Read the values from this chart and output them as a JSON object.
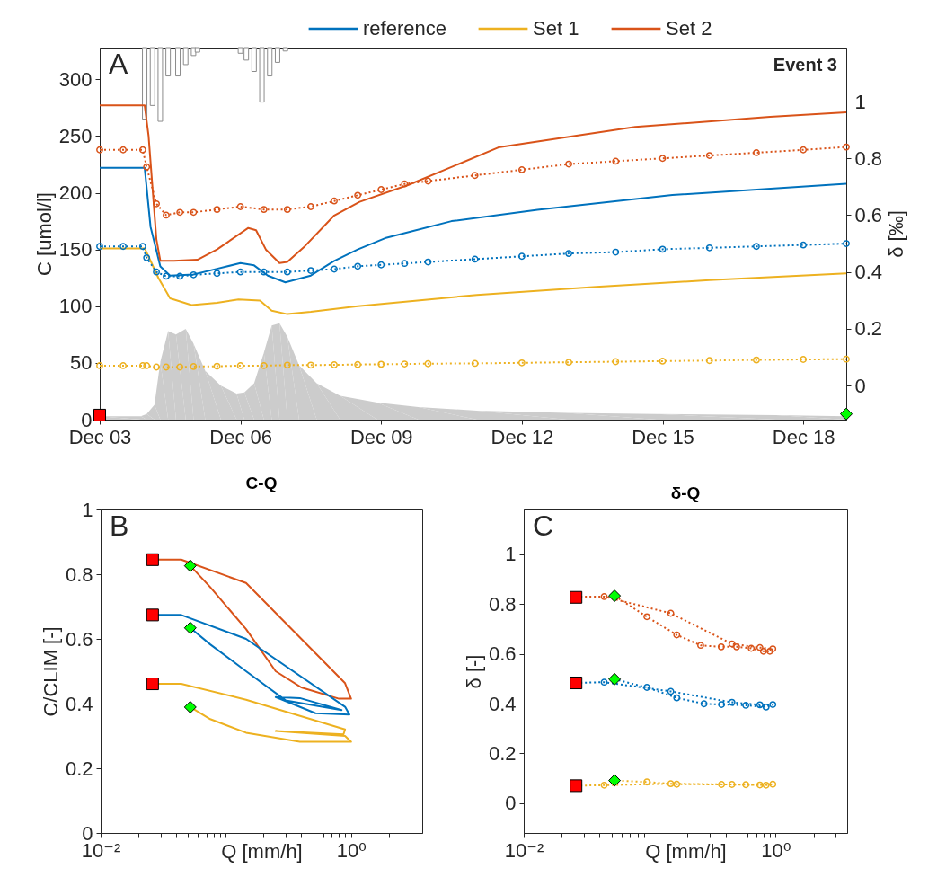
{
  "chart_data": [
    {
      "type": "line",
      "ylabel": "C [umol/l]",
      "y2label": "δ [‰]",
      "annotations": [
        "A",
        "Event 3"
      ],
      "legend": "top right",
      "xlim": [
        "--12-03",
        "--12-18T22:00"
      ],
      "xticks": [
        {
          "value": "--12-03",
          "label": "Dec 03"
        },
        {
          "value": "--12-06",
          "label": "Dec 06"
        },
        {
          "value": "--12-09",
          "label": "Dec 09"
        },
        {
          "value": "--12-12",
          "label": "Dec 12"
        },
        {
          "value": "--12-15",
          "label": "Dec 15"
        },
        {
          "value": "--12-18",
          "label": "Dec 18"
        }
      ],
      "ylim": [
        0,
        328
      ],
      "yticks": [
        0,
        50,
        100,
        150,
        200,
        250,
        300
      ],
      "y2lim": [
        -0.12,
        1.19
      ],
      "y2ticks": [
        0,
        0.2,
        0.4,
        0.6,
        0.8,
        1
      ],
      "series": [
        {
          "type": "area",
          "color": "#cccccc",
          "x": [
            "--12-03",
            "--12-03T21:00",
            "--12-04",
            "--12-04T04:00",
            "--12-04T07:00",
            "--12-04T11:00",
            "--12-04T15:00",
            "--12-04T20:00",
            "--12-05",
            "--12-05T06:00",
            "--12-05T14:00",
            "--12-05T22:00",
            "--12-06T02:00",
            "--12-06T07:00",
            "--12-06T12:00",
            "--12-06T16:00",
            "--12-06T20:00",
            "--12-07",
            "--12-07T06:00",
            "--12-07T15:00",
            "--12-08T03:00",
            "--12-08T22:00",
            "--12-09T19:00",
            "--12-11T01:00",
            "--12-12T23:00",
            "--12-14T21:00",
            "--12-17T10:00",
            "--12-18T22:00"
          ],
          "values": [
            3,
            3,
            5,
            13,
            51,
            78,
            75,
            80,
            67,
            43,
            30,
            23,
            24,
            32,
            59,
            83,
            85,
            73,
            48,
            32,
            21,
            15,
            11,
            8,
            6,
            5,
            4,
            3
          ]
        },
        {
          "type": "bar",
          "color": "#8c8c8c",
          "x": [
            "--12-03T23:00",
            "--12-04T03:00",
            "--12-04T07:00",
            "--12-04T11:00",
            "--12-04T16:00",
            "--12-04T20:00",
            "--12-05",
            "--12-05T02:00",
            "--12-06",
            "--12-06T03:00",
            "--12-06T07:00",
            "--12-06T11:00",
            "--12-06T15:00",
            "--12-06T19:00",
            "--12-06T23:00"
          ],
          "base": [
            328,
            328,
            328,
            328,
            328,
            328,
            328,
            328,
            328,
            328,
            328,
            328,
            328,
            328,
            328
          ],
          "values": [
            -63,
            -51,
            -65,
            -25,
            -25,
            -15,
            -7,
            -4,
            -5,
            -11,
            -21,
            -48,
            -25,
            -13,
            -3
          ]
        },
        {
          "name": "reference",
          "color": "#0072bd",
          "x": [
            "--12-03",
            "--12-03T23:00",
            "--12-04T02:00",
            "--12-04T07:00",
            "--12-04T12:00",
            "--12-05",
            "--12-05T12:00",
            "--12-06",
            "--12-06T07:00",
            "--12-06T14:00",
            "--12-06T23:00",
            "--12-07T12:00",
            "--12-08",
            "--12-08T12:00",
            "--12-09T02:00",
            "--12-10T12:00",
            "--12-12T08:00",
            "--12-15T05:00",
            "--12-18T22:00"
          ],
          "values": [
            222,
            222,
            170,
            135,
            127,
            128,
            133,
            138,
            136,
            127,
            121,
            127,
            140,
            150,
            160,
            175,
            185,
            198,
            208
          ]
        },
        {
          "name": "Set 1",
          "color": "#edb120",
          "x": [
            "--12-03",
            "--12-03T23:00",
            "--12-04T02:00",
            "--12-04T06:00",
            "--12-04T12:00",
            "--12-04T23:00",
            "--12-05T12:00",
            "--12-05T23:00",
            "--12-06T10:00",
            "--12-06T16:00",
            "--12-07",
            "--12-07T12:00",
            "--12-08T12:00",
            "--12-11T01:00",
            "--12-13T14:00",
            "--12-16",
            "--12-18T22:00"
          ],
          "values": [
            151,
            151,
            140,
            125,
            107,
            101,
            103,
            106,
            105,
            96,
            93,
            95,
            100,
            110,
            117,
            123,
            129
          ]
        },
        {
          "name": "Set 2",
          "color": "#d95319",
          "x": [
            "--12-03",
            "--12-03T23:00",
            "--12-04T01:00",
            "--12-04T05:00",
            "--12-04T07:00",
            "--12-04T14:00",
            "--12-05T02:00",
            "--12-05T12:00",
            "--12-06T04:00",
            "--12-06T08:00",
            "--12-06T13:00",
            "--12-06T20:00",
            "--12-07",
            "--12-07T09:00",
            "--12-08",
            "--12-08T13:00",
            "--12-09T14:00",
            "--12-11T12:00",
            "--12-14T10:00",
            "--12-17T07:00",
            "--12-18T22:00"
          ],
          "values": [
            277,
            277,
            250,
            159,
            140,
            140,
            141,
            150,
            169,
            167,
            150,
            138,
            139,
            153,
            180,
            192,
            207,
            240,
            258,
            267,
            271
          ]
        },
        {
          "axis": "y2",
          "color": "#d95319",
          "line_style": "dotted",
          "marker": "circle",
          "x": [
            "--12-03",
            "--12-03T12:00",
            "--12-03T22:00",
            "--12-04",
            "--12-04T05:00",
            "--12-04T10:00",
            "--12-04T17:00",
            "--12-05",
            "--12-05T12:00",
            "--12-06",
            "--12-06T12:00",
            "--12-07",
            "--12-07T12:00",
            "--12-08",
            "--12-08T12:00",
            "--12-09",
            "--12-09T12:00",
            "--12-10",
            "--12-11",
            "--12-12",
            "--12-13",
            "--12-14",
            "--12-15",
            "--12-16",
            "--12-17",
            "--12-18",
            "--12-18T22:00"
          ],
          "values": [
            0.83,
            0.83,
            0.83,
            0.77,
            0.64,
            0.6,
            0.61,
            0.61,
            0.62,
            0.63,
            0.62,
            0.62,
            0.63,
            0.65,
            0.67,
            0.69,
            0.71,
            0.72,
            0.74,
            0.76,
            0.78,
            0.79,
            0.8,
            0.81,
            0.82,
            0.83,
            0.84
          ]
        },
        {
          "axis": "y2",
          "color": "#0072bd",
          "line_style": "dotted",
          "marker": "circle",
          "x": [
            "--12-03",
            "--12-03T12:00",
            "--12-03T22:00",
            "--12-04",
            "--12-04T05:00",
            "--12-04T10:00",
            "--12-04T17:00",
            "--12-05",
            "--12-05T12:00",
            "--12-06",
            "--12-06T12:00",
            "--12-07",
            "--12-07T12:00",
            "--12-08",
            "--12-08T12:00",
            "--12-09",
            "--12-09T12:00",
            "--12-10",
            "--12-11",
            "--12-12",
            "--12-13",
            "--12-14",
            "--12-15",
            "--12-16",
            "--12-17",
            "--12-18",
            "--12-18T22:00"
          ],
          "values": [
            0.49,
            0.49,
            0.49,
            0.45,
            0.4,
            0.385,
            0.385,
            0.39,
            0.395,
            0.4,
            0.4,
            0.4,
            0.405,
            0.41,
            0.42,
            0.425,
            0.43,
            0.435,
            0.445,
            0.455,
            0.465,
            0.47,
            0.48,
            0.485,
            0.49,
            0.495,
            0.5
          ]
        },
        {
          "axis": "y2",
          "color": "#edb120",
          "line_style": "dotted",
          "marker": "circle",
          "x": [
            "--12-03",
            "--12-03T12:00",
            "--12-03T22:00",
            "--12-04",
            "--12-04T05:00",
            "--12-04T10:00",
            "--12-04T17:00",
            "--12-05",
            "--12-05T12:00",
            "--12-06",
            "--12-06T12:00",
            "--12-07",
            "--12-07T12:00",
            "--12-08",
            "--12-08T12:00",
            "--12-09",
            "--12-09T12:00",
            "--12-10",
            "--12-11",
            "--12-12",
            "--12-13",
            "--12-14",
            "--12-15",
            "--12-16",
            "--12-17",
            "--12-18",
            "--12-18T22:00"
          ],
          "values": [
            0.07,
            0.07,
            0.07,
            0.07,
            0.065,
            0.065,
            0.065,
            0.067,
            0.068,
            0.07,
            0.07,
            0.072,
            0.072,
            0.073,
            0.074,
            0.075,
            0.076,
            0.077,
            0.078,
            0.08,
            0.082,
            0.084,
            0.086,
            0.088,
            0.09,
            0.092,
            0.093
          ]
        },
        {
          "type": "scatter",
          "marker": "square",
          "color": "#ff0000",
          "x": [
            "--12-03"
          ],
          "values": [
            4
          ]
        },
        {
          "type": "scatter",
          "marker": "diamond",
          "color": "#00ff00",
          "x": [
            "--12-18T22:00"
          ],
          "values": [
            5
          ]
        }
      ]
    },
    {
      "type": "line",
      "title": "C-Q",
      "xlabel": "Q [mm/h]",
      "ylabel": "C/CLIM [-]",
      "annotations": [
        "B"
      ],
      "log": "x",
      "xlim": [
        0.01,
        3.7
      ],
      "xticks": [
        {
          "value": 0.01,
          "label": "10⁻²"
        },
        {
          "value": 0.02,
          "label": null
        },
        {
          "value": 0.03,
          "label": null
        },
        {
          "value": 0.04,
          "label": null
        },
        {
          "value": 0.05,
          "label": null
        },
        {
          "value": 0.06,
          "label": null
        },
        {
          "value": 0.07,
          "label": null
        },
        {
          "value": 0.08,
          "label": null
        },
        {
          "value": 0.09,
          "label": null
        },
        {
          "value": 0.1,
          "label": null
        },
        {
          "value": 0.2,
          "label": null
        },
        {
          "value": 0.3,
          "label": null
        },
        {
          "value": 0.4,
          "label": null
        },
        {
          "value": 0.5,
          "label": null
        },
        {
          "value": 0.6,
          "label": null
        },
        {
          "value": 0.7,
          "label": null
        },
        {
          "value": 0.8,
          "label": null
        },
        {
          "value": 0.9,
          "label": null
        },
        {
          "value": 1,
          "label": "10⁰"
        },
        {
          "value": 2,
          "label": null
        },
        {
          "value": 3,
          "label": null
        }
      ],
      "ylim": [
        0,
        1
      ],
      "yticks": [
        0,
        0.2,
        0.4,
        0.6,
        0.8,
        1
      ],
      "series": [
        {
          "color": "#d95319",
          "x": [
            0.026,
            0.044,
            0.145,
            0.895,
            1.0,
            0.8,
            0.4,
            0.25,
            0.145,
            0.075,
            0.052
          ],
          "values": [
            0.845,
            0.845,
            0.773,
            0.463,
            0.415,
            0.415,
            0.45,
            0.5,
            0.63,
            0.76,
            0.826
          ]
        },
        {
          "color": "#0072bd",
          "x": [
            0.026,
            0.044,
            0.145,
            0.895,
            0.97,
            0.52,
            0.25,
            0.39,
            0.84,
            0.3,
            0.145,
            0.075,
            0.052
          ],
          "values": [
            0.674,
            0.674,
            0.6,
            0.39,
            0.366,
            0.37,
            0.42,
            0.417,
            0.38,
            0.41,
            0.5,
            0.583,
            0.634
          ]
        },
        {
          "color": "#edb120",
          "x": [
            0.026,
            0.044,
            0.145,
            0.895,
            0.87,
            0.25,
            0.895,
            1.0,
            0.39,
            0.145,
            0.075,
            0.052
          ],
          "values": [
            0.461,
            0.461,
            0.412,
            0.32,
            0.305,
            0.315,
            0.3,
            0.282,
            0.282,
            0.31,
            0.352,
            0.389
          ]
        },
        {
          "type": "scatter",
          "marker": "square",
          "color": "#ff0000",
          "x": [
            0.026,
            0.026,
            0.026
          ],
          "values": [
            0.845,
            0.674,
            0.461
          ]
        },
        {
          "type": "scatter",
          "marker": "diamond",
          "color": "#00ff00",
          "x": [
            0.052,
            0.052,
            0.052
          ],
          "values": [
            0.826,
            0.634,
            0.389
          ]
        }
      ]
    },
    {
      "type": "line",
      "title": "δ-Q",
      "xlabel": "Q [mm/h]",
      "ylabel": "δ [-]",
      "annotations": [
        "C"
      ],
      "log": "x",
      "xlim": [
        0.01,
        3.7
      ],
      "xticks": [
        {
          "value": 0.01,
          "label": "10⁻²"
        },
        {
          "value": 0.02,
          "label": null
        },
        {
          "value": 0.03,
          "label": null
        },
        {
          "value": 0.04,
          "label": null
        },
        {
          "value": 0.05,
          "label": null
        },
        {
          "value": 0.06,
          "label": null
        },
        {
          "value": 0.07,
          "label": null
        },
        {
          "value": 0.08,
          "label": null
        },
        {
          "value": 0.09,
          "label": null
        },
        {
          "value": 0.1,
          "label": null
        },
        {
          "value": 0.2,
          "label": null
        },
        {
          "value": 0.3,
          "label": null
        },
        {
          "value": 0.4,
          "label": null
        },
        {
          "value": 0.5,
          "label": null
        },
        {
          "value": 0.6,
          "label": null
        },
        {
          "value": 0.7,
          "label": null
        },
        {
          "value": 0.8,
          "label": null
        },
        {
          "value": 0.9,
          "label": null
        },
        {
          "value": 1,
          "label": "10⁰"
        },
        {
          "value": 2,
          "label": null
        },
        {
          "value": 3,
          "label": null
        }
      ],
      "ylim": [
        -0.12,
        1.18
      ],
      "yticks": [
        0,
        0.2,
        0.4,
        0.6,
        0.8,
        1
      ],
      "series": [
        {
          "color": "#d95319",
          "line_style": "dotted",
          "marker": "circle",
          "x": [
            0.026,
            0.0435,
            0.147,
            0.45,
            0.75,
            0.95,
            0.9,
            0.8,
            0.64,
            0.49,
            0.37,
            0.254,
            0.164,
            0.095,
            0.0526
          ],
          "values": [
            0.83,
            0.83,
            0.763,
            0.64,
            0.625,
            0.62,
            0.61,
            0.61,
            0.622,
            0.628,
            0.628,
            0.634,
            0.676,
            0.749,
            0.833
          ]
        },
        {
          "color": "#0072bd",
          "line_style": "dotted",
          "marker": "circle",
          "x": [
            0.026,
            0.0435,
            0.147,
            0.45,
            0.75,
            0.95,
            0.84,
            0.58,
            0.372,
            0.27,
            0.164,
            0.095,
            0.0526
          ],
          "values": [
            0.483,
            0.486,
            0.449,
            0.405,
            0.395,
            0.396,
            0.386,
            0.393,
            0.396,
            0.399,
            0.423,
            0.465,
            0.498
          ]
        },
        {
          "color": "#edb120",
          "line_style": "dotted",
          "marker": "circle",
          "x": [
            0.026,
            0.0435,
            0.147,
            0.45,
            0.75,
            0.95,
            0.84,
            0.58,
            0.372,
            0.164,
            0.095,
            0.0526
          ],
          "values": [
            0.07,
            0.072,
            0.078,
            0.075,
            0.073,
            0.076,
            0.072,
            0.074,
            0.075,
            0.076,
            0.085,
            0.091
          ]
        },
        {
          "type": "scatter",
          "marker": "square",
          "color": "#ff0000",
          "x": [
            0.026,
            0.026,
            0.026
          ],
          "values": [
            0.827,
            0.483,
            0.07
          ]
        },
        {
          "type": "scatter",
          "marker": "diamond",
          "color": "#00ff00",
          "x": [
            0.0526,
            0.0526,
            0.0526
          ],
          "values": [
            0.833,
            0.498,
            0.091
          ]
        }
      ]
    }
  ]
}
